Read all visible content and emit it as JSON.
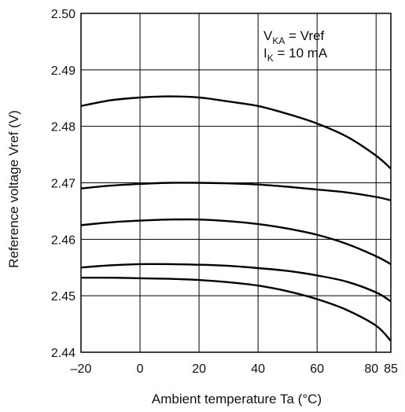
{
  "chart_data": {
    "type": "line",
    "title": "",
    "xlabel": "Ambient temperature  Ta  (°C)",
    "ylabel": "Reference voltage  Vref  (V)",
    "xlim": [
      -20,
      85
    ],
    "ylim": [
      2.44,
      2.5
    ],
    "x_ticks": [
      -20,
      0,
      20,
      40,
      60,
      80,
      85
    ],
    "x_tick_labels": [
      "–20",
      "0",
      "20",
      "40",
      "60",
      "80",
      "85"
    ],
    "y_ticks": [
      2.44,
      2.45,
      2.46,
      2.47,
      2.48,
      2.49,
      2.5
    ],
    "y_tick_labels": [
      "2.44",
      "2.45",
      "2.46",
      "2.47",
      "2.48",
      "2.49",
      "2.50"
    ],
    "grid": true,
    "annotation": {
      "line1": {
        "main": "V",
        "sub": "KA",
        "rest": " = Vref"
      },
      "line2": {
        "main": "I",
        "sub": "K",
        "rest": " = 10 mA"
      }
    },
    "series": [
      {
        "x": [
          -20,
          -10,
          0,
          10,
          20,
          30,
          40,
          50,
          60,
          70,
          80,
          85
        ],
        "values": [
          2.4836,
          2.4846,
          2.4851,
          2.4853,
          2.4851,
          2.4844,
          2.4836,
          2.4822,
          2.4805,
          2.4782,
          2.4748,
          2.4725
        ]
      },
      {
        "x": [
          -20,
          -10,
          0,
          10,
          20,
          30,
          40,
          50,
          60,
          70,
          80,
          85
        ],
        "values": [
          2.469,
          2.4695,
          2.4698,
          2.47,
          2.47,
          2.4699,
          2.4697,
          2.4693,
          2.4688,
          2.4683,
          2.4675,
          2.4669
        ]
      },
      {
        "x": [
          -20,
          -10,
          0,
          10,
          20,
          30,
          40,
          50,
          60,
          70,
          80,
          85
        ],
        "values": [
          2.4625,
          2.463,
          2.4633,
          2.4635,
          2.4635,
          2.4632,
          2.4627,
          2.4619,
          2.4608,
          2.4592,
          2.457,
          2.4556
        ]
      },
      {
        "x": [
          -20,
          -10,
          0,
          10,
          20,
          30,
          40,
          50,
          60,
          70,
          80,
          85
        ],
        "values": [
          2.455,
          2.4554,
          2.4556,
          2.4556,
          2.4555,
          2.4553,
          2.4549,
          2.4544,
          2.4536,
          2.4525,
          2.4506,
          2.449
        ]
      },
      {
        "x": [
          -20,
          -10,
          0,
          10,
          20,
          30,
          40,
          50,
          60,
          70,
          80,
          85
        ],
        "values": [
          2.4532,
          2.4532,
          2.4531,
          2.453,
          2.4528,
          2.4524,
          2.4518,
          2.4508,
          2.4494,
          2.4475,
          2.4447,
          2.442
        ]
      }
    ]
  }
}
